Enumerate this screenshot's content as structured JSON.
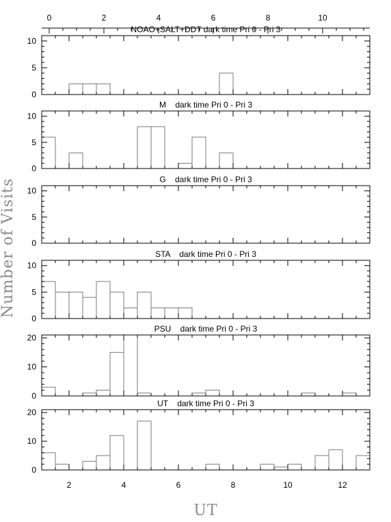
{
  "figure": {
    "ylabel": "Number of Visits",
    "xlabel": "UT"
  },
  "chart_data": [
    {
      "type": "histogram",
      "title": "NOAO+SALT+DDT dark time Pri 0 - Pri 3",
      "xlim": [
        1,
        13
      ],
      "ylim": [
        0,
        11
      ],
      "yticks": [
        0,
        5,
        10
      ],
      "bin_width": 0.5,
      "bins": [
        [
          2.25,
          2
        ],
        [
          2.75,
          2
        ],
        [
          3.25,
          2
        ],
        [
          7.75,
          4
        ]
      ]
    },
    {
      "type": "histogram",
      "title": "M    dark time Pri 0 - Pri 3",
      "xlim": [
        1,
        13
      ],
      "ylim": [
        0,
        11
      ],
      "yticks": [
        0,
        5,
        10
      ],
      "bin_width": 0.5,
      "bins": [
        [
          1.25,
          6
        ],
        [
          2.25,
          3
        ],
        [
          4.75,
          8
        ],
        [
          5.25,
          8
        ],
        [
          6.25,
          1
        ],
        [
          6.75,
          6
        ],
        [
          7.75,
          3
        ]
      ]
    },
    {
      "type": "histogram",
      "title": "G    dark time Pri 0 - Pri 3",
      "xlim": [
        1,
        13
      ],
      "ylim": [
        0,
        11
      ],
      "yticks": [
        0,
        5,
        10
      ],
      "bin_width": 0.5,
      "bins": []
    },
    {
      "type": "histogram",
      "title": "STA    dark time Pri 0 - Pri 3",
      "xlim": [
        1,
        13
      ],
      "ylim": [
        0,
        11
      ],
      "yticks": [
        0,
        5,
        10
      ],
      "bin_width": 0.5,
      "bins": [
        [
          1.25,
          7
        ],
        [
          1.75,
          5
        ],
        [
          2.25,
          5
        ],
        [
          2.75,
          4
        ],
        [
          3.25,
          7
        ],
        [
          3.75,
          5
        ],
        [
          4.25,
          2
        ],
        [
          4.75,
          5
        ],
        [
          5.25,
          2
        ],
        [
          5.75,
          2
        ],
        [
          6.25,
          2
        ]
      ]
    },
    {
      "type": "histogram",
      "title": "PSU    dark time Pri 0 - Pri 3",
      "xlim": [
        1,
        13
      ],
      "ylim": [
        0,
        21
      ],
      "yticks": [
        0,
        10,
        20
      ],
      "bin_width": 0.5,
      "bins": [
        [
          1.25,
          3
        ],
        [
          2.75,
          1
        ],
        [
          3.25,
          2
        ],
        [
          3.75,
          15
        ],
        [
          4.25,
          21
        ],
        [
          4.75,
          1
        ],
        [
          6.75,
          1
        ],
        [
          7.25,
          2
        ],
        [
          10.75,
          1
        ],
        [
          12.25,
          1
        ]
      ]
    },
    {
      "type": "histogram",
      "title": "UT    dark time Pri 0 - Pri 3",
      "xlim": [
        1,
        13
      ],
      "ylim": [
        0,
        21
      ],
      "yticks": [
        0,
        10,
        20
      ],
      "bin_width": 0.5,
      "bins": [
        [
          1.25,
          6
        ],
        [
          1.75,
          2
        ],
        [
          2.75,
          3
        ],
        [
          3.25,
          5
        ],
        [
          3.75,
          12
        ],
        [
          4.75,
          17
        ],
        [
          7.25,
          2
        ],
        [
          9.25,
          2
        ],
        [
          9.75,
          1
        ],
        [
          10.25,
          2
        ],
        [
          11.25,
          5
        ],
        [
          11.75,
          7
        ],
        [
          12.75,
          5
        ]
      ]
    }
  ],
  "top_axis": {
    "ticks": [
      "0",
      "2",
      "4",
      "6",
      "8",
      "10"
    ],
    "range": [
      0,
      12
    ]
  },
  "bottom_axis": {
    "ticks": [
      "2",
      "4",
      "6",
      "8",
      "10",
      "12"
    ],
    "range": [
      1,
      13
    ]
  }
}
